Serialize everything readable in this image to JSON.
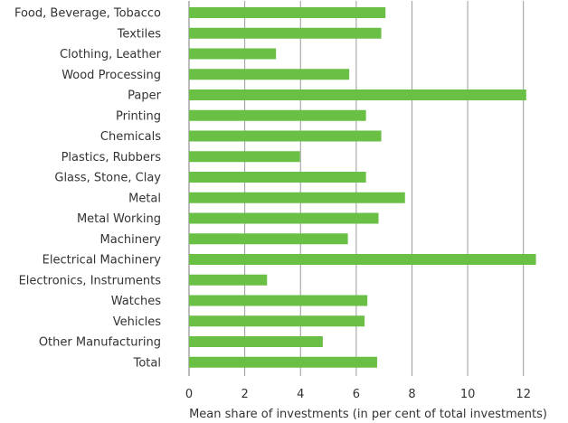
{
  "chart_data": {
    "type": "bar",
    "orientation": "horizontal",
    "categories": [
      "Food, Beverage, Tobacco",
      "Textiles",
      "Clothing, Leather",
      "Wood Processing",
      "Paper",
      "Printing",
      "Chemicals",
      "Plastics, Rubbers",
      "Glass, Stone, Clay",
      "Metal",
      "Metal Working",
      "Machinery",
      "Electrical Machinery",
      "Electronics, Instruments",
      "Watches",
      "Vehicles",
      "Other Manufacturing",
      "Total"
    ],
    "values": [
      7.05,
      6.9,
      3.12,
      5.75,
      12.1,
      6.35,
      6.9,
      3.98,
      6.35,
      7.75,
      6.8,
      5.7,
      12.45,
      2.8,
      6.4,
      6.3,
      4.8,
      6.75
    ],
    "xlabel": "Mean share of investments (in per cent of total investments)",
    "xticks": [
      0,
      2,
      4,
      6,
      8,
      10,
      12
    ],
    "xlim": [
      0,
      13.6
    ],
    "grid": "vertical",
    "colors": {
      "bar": "#6abf45",
      "grid": "#9a9a9a",
      "text": "#333333"
    }
  }
}
